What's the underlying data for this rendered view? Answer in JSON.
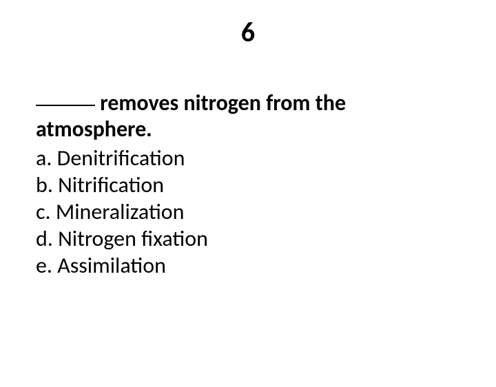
{
  "slide": {
    "number": "6",
    "question_text": " removes nitrogen from the atmosphere.",
    "options": [
      {
        "label": "a. Denitrification"
      },
      {
        "label": "b. Nitrification"
      },
      {
        "label": "c. Mineralization"
      },
      {
        "label": "d. Nitrogen fixation"
      },
      {
        "label": "e. Assimilation"
      }
    ]
  },
  "style": {
    "background_color": "#ffffff",
    "text_color": "#000000",
    "title_fontsize": 40,
    "body_fontsize": 32,
    "font_family": "Calibri"
  }
}
